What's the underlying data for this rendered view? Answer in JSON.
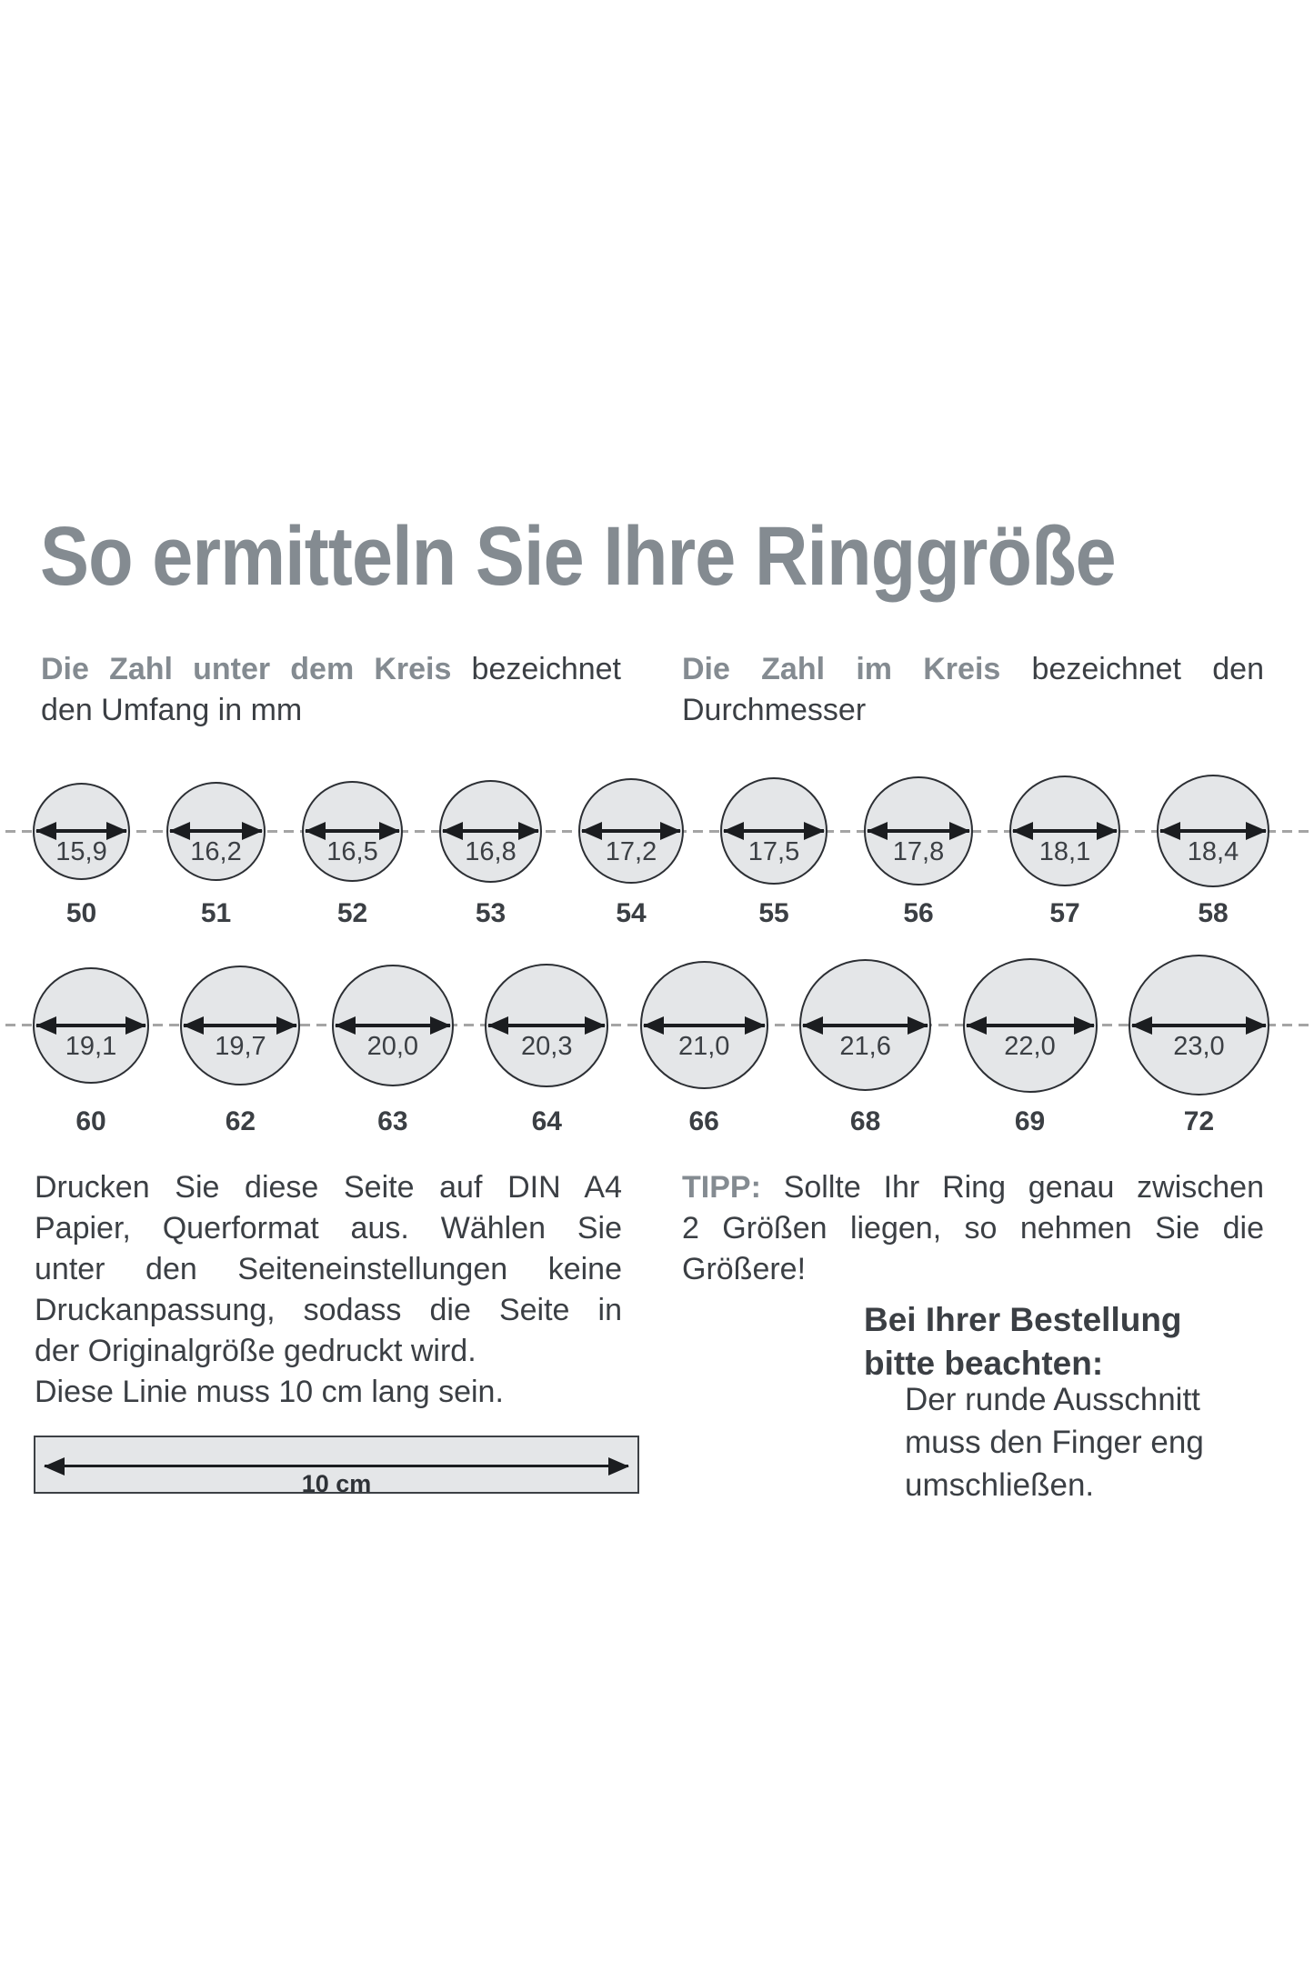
{
  "title": "So ermitteln Sie Ihre Ringgröße",
  "intro_left": {
    "lead": "Die Zahl unter dem Kreis",
    "line1_rest": " bezeichnet",
    "line2": "den Umfang in mm"
  },
  "intro_right": {
    "lead": "Die Zahl im Kreis",
    "line1_rest": " bezeichnet den",
    "line2": "Durchmesser"
  },
  "rows": [
    {
      "items": [
        {
          "diameter_mm": "15,9",
          "size": "50"
        },
        {
          "diameter_mm": "16,2",
          "size": "51"
        },
        {
          "diameter_mm": "16,5",
          "size": "52"
        },
        {
          "diameter_mm": "16,8",
          "size": "53"
        },
        {
          "diameter_mm": "17,2",
          "size": "54"
        },
        {
          "diameter_mm": "17,5",
          "size": "55"
        },
        {
          "diameter_mm": "17,8",
          "size": "56"
        },
        {
          "diameter_mm": "18,1",
          "size": "57"
        },
        {
          "diameter_mm": "18,4",
          "size": "58"
        }
      ]
    },
    {
      "items": [
        {
          "diameter_mm": "19,1",
          "size": "60"
        },
        {
          "diameter_mm": "19,7",
          "size": "62"
        },
        {
          "diameter_mm": "20,0",
          "size": "63"
        },
        {
          "diameter_mm": "20,3",
          "size": "64"
        },
        {
          "diameter_mm": "21,0",
          "size": "66"
        },
        {
          "diameter_mm": "21,6",
          "size": "68"
        },
        {
          "diameter_mm": "22,0",
          "size": "69"
        },
        {
          "diameter_mm": "23,0",
          "size": "72"
        }
      ]
    }
  ],
  "instructions": {
    "lines": [
      "Drucken Sie diese Seite auf DIN A4",
      "Papier, Querformat aus. Wählen Sie",
      "unter den Seiteneinstellungen keine",
      "Druckanpassung, sodass die Seite in",
      "der Originalgröße gedruckt wird.",
      "Diese Linie muss 10 cm lang sein."
    ]
  },
  "ruler": {
    "label": "10 cm"
  },
  "tip": {
    "lead": "TIPP:",
    "line1_rest": " Sollte Ihr Ring genau zwischen",
    "line2": "2 Größen liegen, so nehmen Sie die",
    "line3": "Größere!"
  },
  "order_note": {
    "heading_lines": [
      "Bei Ihrer Bestellung",
      "bitte beachten:"
    ],
    "body_lines": [
      "Der runde Ausschnitt",
      "muss den Finger eng",
      "umschließen."
    ]
  },
  "colors": {
    "accent_gray": "#848b91",
    "text": "#3b3f44",
    "circle_fill": "#e4e6e8",
    "circle_stroke": "#2c2f34",
    "dash": "#a5a5a5",
    "arrow": "#1b1d20"
  }
}
